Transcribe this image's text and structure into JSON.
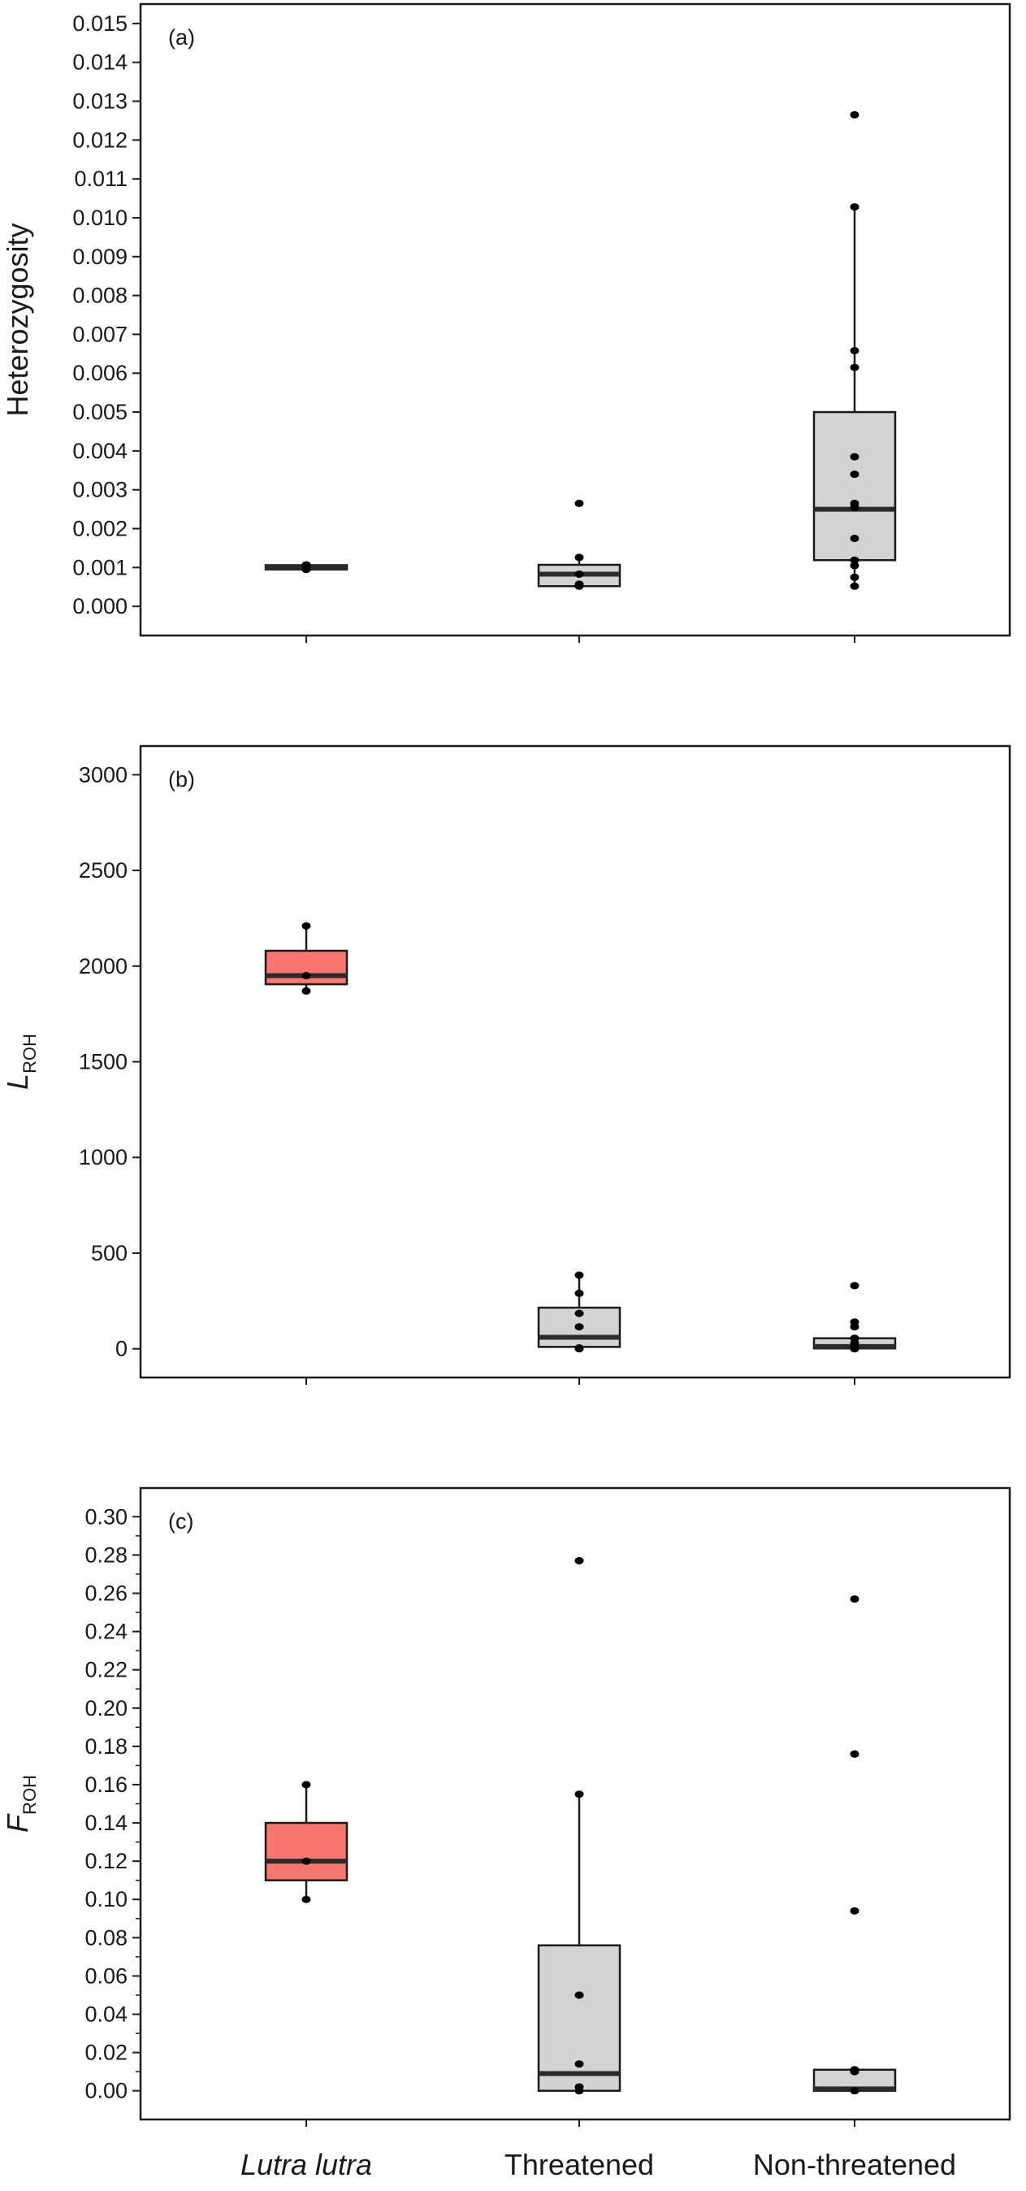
{
  "categories": [
    "Lutra lutra",
    "Threatened",
    "Non-threatened"
  ],
  "category_styles": [
    "italic",
    "normal",
    "normal"
  ],
  "colors": {
    "lutra_fill": "#f8766d",
    "lutra_dark_fill": "#555555",
    "group_fill": "#d3d3d3",
    "stroke": "#1a1a1a",
    "point": "#000000"
  },
  "chart_data": [
    {
      "type": "box",
      "panel_label": "(a)",
      "ylabel": "Heterozygosity",
      "ylabel_main": "Heterozygosity",
      "ylabel_sub": "",
      "ylim": [
        -0.00075,
        0.0155
      ],
      "yticks": [
        0.0,
        0.001,
        0.002,
        0.003,
        0.004,
        0.005,
        0.006,
        0.007,
        0.008,
        0.009,
        0.01,
        0.011,
        0.012,
        0.013,
        0.014,
        0.015
      ],
      "ytick_labels": [
        "0.000",
        "0.001",
        "0.002",
        "0.003",
        "0.004",
        "0.005",
        "0.006",
        "0.007",
        "0.008",
        "0.009",
        "0.010",
        "0.011",
        "0.012",
        "0.013",
        "0.014",
        "0.015"
      ],
      "minor_ticks": [],
      "boxes": [
        {
          "category": "Lutra lutra",
          "whisker_low": 0.00095,
          "q1": 0.00095,
          "median": 0.00101,
          "q3": 0.00106,
          "whisker_high": 0.00106,
          "fill": "dark",
          "points": [
            0.00095,
            0.00103,
            0.00107
          ]
        },
        {
          "category": "Threatened",
          "whisker_low": 0.00052,
          "q1": 0.00052,
          "median": 0.00083,
          "q3": 0.00107,
          "whisker_high": 0.00126,
          "fill": "grey",
          "points": [
            0.00052,
            0.00057,
            0.00083,
            0.00126,
            0.00265
          ]
        },
        {
          "category": "Non-threatened",
          "whisker_low": 0.00052,
          "q1": 0.00119,
          "median": 0.0025,
          "q3": 0.005,
          "whisker_high": 0.01028,
          "fill": "grey",
          "points": [
            0.00052,
            0.00075,
            0.00105,
            0.00119,
            0.00175,
            0.00255,
            0.00265,
            0.0034,
            0.00385,
            0.00615,
            0.00658,
            0.01028,
            0.01265
          ]
        }
      ]
    },
    {
      "type": "box",
      "panel_label": "(b)",
      "ylabel": "LROH",
      "ylabel_main": "L",
      "ylabel_sub": "ROH",
      "ylim": [
        -150,
        3150
      ],
      "yticks": [
        0,
        500,
        1000,
        1500,
        2000,
        2500,
        3000
      ],
      "ytick_labels": [
        "0",
        "500",
        "1000",
        "1500",
        "2000",
        "2500",
        "3000"
      ],
      "minor_ticks": [],
      "boxes": [
        {
          "category": "Lutra lutra",
          "whisker_low": 1870,
          "q1": 1905,
          "median": 1950,
          "q3": 2080,
          "whisker_high": 2210,
          "fill": "red",
          "points": [
            1870,
            1950,
            2210
          ]
        },
        {
          "category": "Threatened",
          "whisker_low": 0,
          "q1": 10,
          "median": 60,
          "q3": 215,
          "whisker_high": 385,
          "fill": "grey",
          "points": [
            0,
            5,
            115,
            185,
            290,
            385
          ]
        },
        {
          "category": "Non-threatened",
          "whisker_low": 0,
          "q1": 2,
          "median": 12,
          "q3": 55,
          "whisker_high": 55,
          "fill": "grey",
          "points": [
            0,
            2,
            5,
            15,
            30,
            55,
            115,
            140,
            330
          ]
        }
      ]
    },
    {
      "type": "box",
      "panel_label": "(c)",
      "ylabel": "FROH",
      "ylabel_main": "F",
      "ylabel_sub": "ROH",
      "ylim": [
        -0.015,
        0.315
      ],
      "yticks": [
        0.0,
        0.02,
        0.04,
        0.06,
        0.08,
        0.1,
        0.12,
        0.14,
        0.16,
        0.18,
        0.2,
        0.22,
        0.24,
        0.26,
        0.28,
        0.3
      ],
      "ytick_labels": [
        "0.00",
        "0.02",
        "0.04",
        "0.06",
        "0.08",
        "0.10",
        "0.12",
        "0.14",
        "0.16",
        "0.18",
        "0.20",
        "0.22",
        "0.24",
        "0.26",
        "0.28",
        "0.30"
      ],
      "minor_ticks": [
        0.01,
        0.03,
        0.05,
        0.07,
        0.09,
        0.11,
        0.13,
        0.15,
        0.17,
        0.19,
        0.21,
        0.23,
        0.25,
        0.27,
        0.29
      ],
      "boxes": [
        {
          "category": "Lutra lutra",
          "whisker_low": 0.1,
          "q1": 0.11,
          "median": 0.12,
          "q3": 0.14,
          "whisker_high": 0.16,
          "fill": "red",
          "points": [
            0.1,
            0.12,
            0.16
          ]
        },
        {
          "category": "Threatened",
          "whisker_low": 0.0,
          "q1": 0.0,
          "median": 0.009,
          "q3": 0.076,
          "whisker_high": 0.155,
          "fill": "grey",
          "points": [
            0.0,
            0.002,
            0.014,
            0.05,
            0.155,
            0.277
          ]
        },
        {
          "category": "Non-threatened",
          "whisker_low": 0.0,
          "q1": 0.0,
          "median": 0.001,
          "q3": 0.011,
          "whisker_high": 0.011,
          "fill": "grey",
          "points": [
            0.0,
            0.01,
            0.011,
            0.094,
            0.176,
            0.257
          ]
        }
      ]
    }
  ]
}
